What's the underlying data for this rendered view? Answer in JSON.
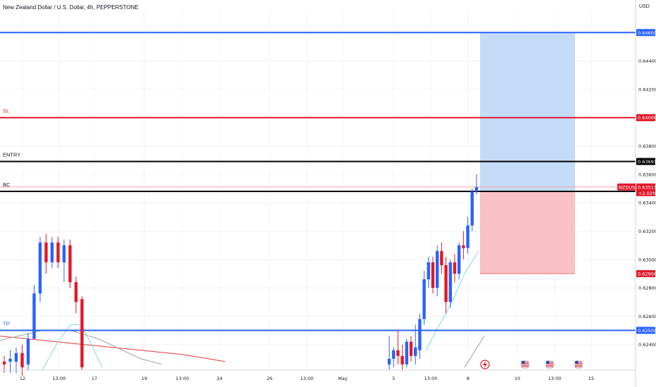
{
  "header": {
    "title": "New Zealand Dollar / U.S. Dollar, 4h, PEPPERSTONE",
    "currency": "USD"
  },
  "colors": {
    "up": "#2962ff",
    "down": "#e0192a",
    "blue_line": "#2962ff",
    "red_line": "#e0192a",
    "black_line": "#000000",
    "target_zone": "#bbd6f7",
    "stop_zone": "#f9b7bb",
    "ma_red": "#e53935",
    "ma_gray": "#9e9e9e",
    "ma_cyan": "#7fd6ec"
  },
  "chart_data": {
    "type": "candlestick",
    "symbol": "NZDUSD",
    "interval": "4h",
    "ylim": [
      0.6222,
      0.6476
    ],
    "y_ticks": [
      "0.64400",
      "0.64200",
      "0.63800",
      "0.63600",
      "0.63400",
      "0.63200",
      "0.63000",
      "0.62800",
      "0.62600",
      "0.62400"
    ],
    "x_ticks": [
      "12",
      "13:00",
      "17",
      "19",
      "13:00",
      "24",
      "26",
      "13:00",
      "May",
      "3",
      "13:00",
      "8",
      "10",
      "13:00",
      "15"
    ],
    "price_lines": [
      {
        "label": "",
        "value": 0.646,
        "color_key": "blue_line",
        "tag": "0.64600"
      },
      {
        "label": "SL",
        "value": 0.64,
        "color_key": "red_line",
        "tag": "0.64000"
      },
      {
        "label": "ENTRY",
        "value": 0.63691,
        "color_key": "black_line",
        "tag": "0.63691"
      },
      {
        "label": "BC",
        "value": 0.6348,
        "color_key": "black_line",
        "tag": ""
      },
      {
        "label": "TP",
        "value": 0.625,
        "color_key": "blue_line",
        "tag": "0.62500"
      }
    ],
    "last_price": {
      "symbol": "NZDUSD",
      "value": "0.63511",
      "change": "+2.02%"
    },
    "position_zones": {
      "target": {
        "top": 0.646,
        "bottom": 0.6348
      },
      "stop": {
        "top": 0.6348,
        "bottom": 0.629,
        "tag": "0.62900"
      }
    },
    "candles_left": [
      {
        "o": 0.6228,
        "h": 0.6232,
        "l": 0.622,
        "c": 0.6226
      },
      {
        "o": 0.6228,
        "h": 0.6236,
        "l": 0.622,
        "c": 0.623
      },
      {
        "o": 0.6228,
        "h": 0.6238,
        "l": 0.622,
        "c": 0.6234
      },
      {
        "o": 0.6234,
        "h": 0.624,
        "l": 0.6218,
        "c": 0.6224
      },
      {
        "o": 0.6226,
        "h": 0.6248,
        "l": 0.6222,
        "c": 0.6244
      },
      {
        "o": 0.6244,
        "h": 0.6282,
        "l": 0.6244,
        "c": 0.6276
      },
      {
        "o": 0.6276,
        "h": 0.6316,
        "l": 0.627,
        "c": 0.6312
      },
      {
        "o": 0.6312,
        "h": 0.6318,
        "l": 0.629,
        "c": 0.6298
      },
      {
        "o": 0.6298,
        "h": 0.6316,
        "l": 0.6294,
        "c": 0.6312
      },
      {
        "o": 0.6312,
        "h": 0.6316,
        "l": 0.6294,
        "c": 0.6298
      },
      {
        "o": 0.6298,
        "h": 0.6314,
        "l": 0.6284,
        "c": 0.631
      },
      {
        "o": 0.631,
        "h": 0.6314,
        "l": 0.628,
        "c": 0.6284
      },
      {
        "o": 0.6284,
        "h": 0.6288,
        "l": 0.6262,
        "c": 0.627
      },
      {
        "o": 0.6272,
        "h": 0.6274,
        "l": 0.6222,
        "c": 0.6224
      }
    ],
    "candles_right": [
      {
        "o": 0.6226,
        "h": 0.6246,
        "l": 0.6222,
        "c": 0.623
      },
      {
        "o": 0.623,
        "h": 0.6238,
        "l": 0.6224,
        "c": 0.6236
      },
      {
        "o": 0.6236,
        "h": 0.625,
        "l": 0.6226,
        "c": 0.6232
      },
      {
        "o": 0.6232,
        "h": 0.624,
        "l": 0.6222,
        "c": 0.6226
      },
      {
        "o": 0.6226,
        "h": 0.6244,
        "l": 0.6224,
        "c": 0.6242
      },
      {
        "o": 0.6242,
        "h": 0.6246,
        "l": 0.6228,
        "c": 0.6232
      },
      {
        "o": 0.6232,
        "h": 0.6254,
        "l": 0.6226,
        "c": 0.6238
      },
      {
        "o": 0.6236,
        "h": 0.6262,
        "l": 0.623,
        "c": 0.6258
      },
      {
        "o": 0.6258,
        "h": 0.6292,
        "l": 0.6254,
        "c": 0.6286
      },
      {
        "o": 0.6286,
        "h": 0.6302,
        "l": 0.628,
        "c": 0.6298
      },
      {
        "o": 0.6298,
        "h": 0.6302,
        "l": 0.6276,
        "c": 0.628
      },
      {
        "o": 0.628,
        "h": 0.631,
        "l": 0.6274,
        "c": 0.6306
      },
      {
        "o": 0.6306,
        "h": 0.6312,
        "l": 0.629,
        "c": 0.6296
      },
      {
        "o": 0.6296,
        "h": 0.6302,
        "l": 0.6262,
        "c": 0.627
      },
      {
        "o": 0.627,
        "h": 0.63,
        "l": 0.6266,
        "c": 0.6298
      },
      {
        "o": 0.6298,
        "h": 0.6304,
        "l": 0.6284,
        "c": 0.629
      },
      {
        "o": 0.629,
        "h": 0.6312,
        "l": 0.6286,
        "c": 0.631
      },
      {
        "o": 0.631,
        "h": 0.632,
        "l": 0.63,
        "c": 0.6308
      },
      {
        "o": 0.6308,
        "h": 0.633,
        "l": 0.6304,
        "c": 0.6324
      },
      {
        "o": 0.6324,
        "h": 0.635,
        "l": 0.632,
        "c": 0.6348
      },
      {
        "o": 0.6348,
        "h": 0.636,
        "l": 0.6346,
        "c": 0.6351
      }
    ],
    "ma_points": {
      "red": [
        [
          0,
          0.6246
        ],
        [
          40,
          0.6244
        ],
        [
          120,
          0.624
        ],
        [
          200,
          0.6236
        ],
        [
          260,
          0.6233
        ],
        [
          320,
          0.6228
        ]
      ],
      "gray": [
        [
          0,
          0.6243
        ],
        [
          60,
          0.625
        ],
        [
          100,
          0.625
        ],
        [
          140,
          0.6244
        ],
        [
          200,
          0.623
        ],
        [
          230,
          0.6226
        ]
      ],
      "cyan_left": [
        [
          60,
          0.6222
        ],
        [
          80,
          0.624
        ],
        [
          100,
          0.6254
        ],
        [
          115,
          0.6254
        ],
        [
          130,
          0.624
        ],
        [
          145,
          0.6224
        ]
      ],
      "cyan_right": [
        [
          605,
          0.6236
        ],
        [
          620,
          0.625
        ],
        [
          640,
          0.6268
        ],
        [
          660,
          0.629
        ],
        [
          680,
          0.6306
        ]
      ],
      "gray_right": [
        [
          660,
          0.6224
        ],
        [
          688,
          0.6246
        ]
      ]
    }
  },
  "events": [
    "lightning-event-icon",
    "us-flag-event-icon",
    "us-flag-event-icon",
    "us-flag-event-icon",
    "us-flag-event-icon"
  ]
}
